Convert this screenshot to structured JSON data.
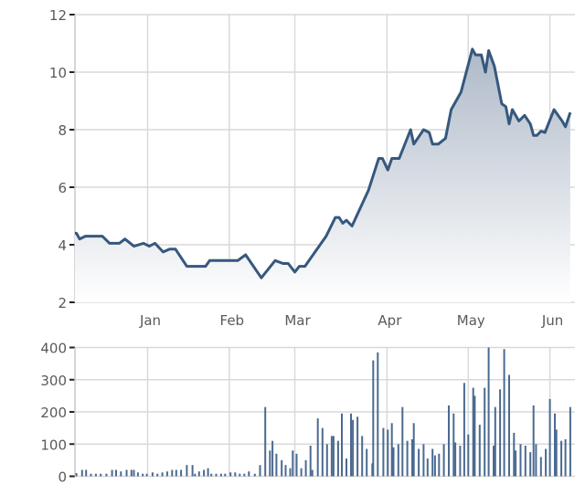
{
  "chart_data": [
    {
      "type": "area",
      "title": "",
      "xlabel": "",
      "ylabel": "",
      "ylim": [
        2,
        12
      ],
      "yticks": [
        2,
        4,
        6,
        8,
        10,
        12
      ],
      "xlim": [
        0.09,
        6.31
      ],
      "xticks": [
        {
          "label": "Jan",
          "month": 1
        },
        {
          "label": "Feb",
          "month": 2
        },
        {
          "label": "Mar",
          "month": 3
        },
        {
          "label": "Apr",
          "month": 4
        },
        {
          "label": "May",
          "month": 5
        },
        {
          "label": "Jun",
          "month": 6
        }
      ],
      "grid": true,
      "colors": {
        "line": "#36587e",
        "fill_top": "#aeb9c8",
        "fill_bottom": "#ffffff",
        "grid": "#d9d9d9"
      },
      "x": [
        0.12,
        0.16,
        0.23,
        0.44,
        0.53,
        0.65,
        0.72,
        0.83,
        0.95,
        1.02,
        1.09,
        1.19,
        1.27,
        1.34,
        1.48,
        1.71,
        1.76,
        2.13,
        2.25,
        2.49,
        2.7,
        2.82,
        2.9,
        3.0,
        3.05,
        3.11,
        3.34,
        3.44,
        3.48,
        3.52,
        3.56,
        3.62,
        3.8,
        3.91,
        3.95,
        4.01,
        4.06,
        4.15,
        4.29,
        4.33,
        4.45,
        4.52,
        4.56,
        4.63,
        4.72,
        4.79,
        4.91,
        5.05,
        5.09,
        5.16,
        5.21,
        5.25,
        5.32,
        5.41,
        5.46,
        5.5,
        5.54,
        5.62,
        5.69,
        5.76,
        5.8,
        5.84,
        5.89,
        5.94,
        6.05,
        6.15,
        6.19,
        6.25
      ],
      "values": [
        4.4,
        4.2,
        4.3,
        4.3,
        4.05,
        4.05,
        4.2,
        3.95,
        4.05,
        3.95,
        4.05,
        3.75,
        3.85,
        3.85,
        3.25,
        3.25,
        3.45,
        3.45,
        3.65,
        2.85,
        3.45,
        3.35,
        3.35,
        3.05,
        3.25,
        3.25,
        4.3,
        4.95,
        4.95,
        4.75,
        4.85,
        4.65,
        5.9,
        7.0,
        7.0,
        6.6,
        7.0,
        7.0,
        8.0,
        7.5,
        8.0,
        7.9,
        7.5,
        7.5,
        7.7,
        8.7,
        9.3,
        10.8,
        10.6,
        10.6,
        10.0,
        10.75,
        10.2,
        8.9,
        8.8,
        8.2,
        8.7,
        8.3,
        8.5,
        8.2,
        7.8,
        7.8,
        7.95,
        7.9,
        8.7,
        8.3,
        8.1,
        8.6
      ]
    },
    {
      "type": "bar",
      "title": "",
      "xlabel": "",
      "ylabel": "",
      "ylim": [
        0,
        400
      ],
      "yticks": [
        0,
        100,
        200,
        300,
        400
      ],
      "xlim": [
        0.09,
        6.31
      ],
      "grid": true,
      "colors": {
        "bar": "#4b6a90"
      },
      "x": [
        0.12,
        0.19,
        0.24,
        0.3,
        0.36,
        0.42,
        0.49,
        0.56,
        0.61,
        0.67,
        0.74,
        0.8,
        0.83,
        0.88,
        0.94,
        0.99,
        1.06,
        1.12,
        1.18,
        1.24,
        1.3,
        1.35,
        1.41,
        1.48,
        1.55,
        1.58,
        1.63,
        1.69,
        1.74,
        1.78,
        1.84,
        1.9,
        1.95,
        2.02,
        2.09,
        2.16,
        2.23,
        2.3,
        2.39,
        2.47,
        2.55,
        2.62,
        2.66,
        2.72,
        2.8,
        2.86,
        2.93,
        2.97,
        3.02,
        3.07,
        3.12,
        3.17,
        3.19,
        3.25,
        3.3,
        3.35,
        3.4,
        3.42,
        3.47,
        3.51,
        3.56,
        3.61,
        3.63,
        3.68,
        3.73,
        3.78,
        3.84,
        3.85,
        3.9,
        3.96,
        4.01,
        4.06,
        4.08,
        4.14,
        4.19,
        4.25,
        4.31,
        4.33,
        4.39,
        4.45,
        4.5,
        4.56,
        4.59,
        4.64,
        4.7,
        4.76,
        4.82,
        4.84,
        4.9,
        4.95,
        5.0,
        5.06,
        5.08,
        5.14,
        5.2,
        5.25,
        5.31,
        5.33,
        5.39,
        5.44,
        5.5,
        5.56,
        5.58,
        5.64,
        5.7,
        5.76,
        5.8,
        5.83,
        5.89,
        5.95,
        6.0,
        6.06,
        6.08,
        6.14,
        6.19,
        6.25
      ],
      "values": [
        10,
        20,
        20,
        8,
        8,
        8,
        8,
        20,
        20,
        15,
        20,
        20,
        20,
        12,
        8,
        8,
        12,
        8,
        12,
        15,
        20,
        20,
        20,
        35,
        35,
        8,
        15,
        20,
        25,
        8,
        8,
        8,
        8,
        12,
        12,
        8,
        8,
        15,
        8,
        35,
        215,
        80,
        110,
        70,
        50,
        35,
        25,
        80,
        70,
        25,
        50,
        95,
        20,
        180,
        150,
        100,
        125,
        125,
        110,
        195,
        55,
        195,
        175,
        185,
        125,
        85,
        40,
        360,
        385,
        150,
        145,
        165,
        90,
        100,
        215,
        110,
        115,
        165,
        85,
        100,
        55,
        85,
        65,
        70,
        100,
        220,
        195,
        105,
        95,
        290,
        130,
        275,
        250,
        160,
        275,
        400,
        95,
        215,
        270,
        395,
        315,
        135,
        80,
        100,
        95,
        75,
        220,
        100,
        60,
        85,
        240,
        195,
        145,
        110,
        115,
        215
      ]
    }
  ]
}
